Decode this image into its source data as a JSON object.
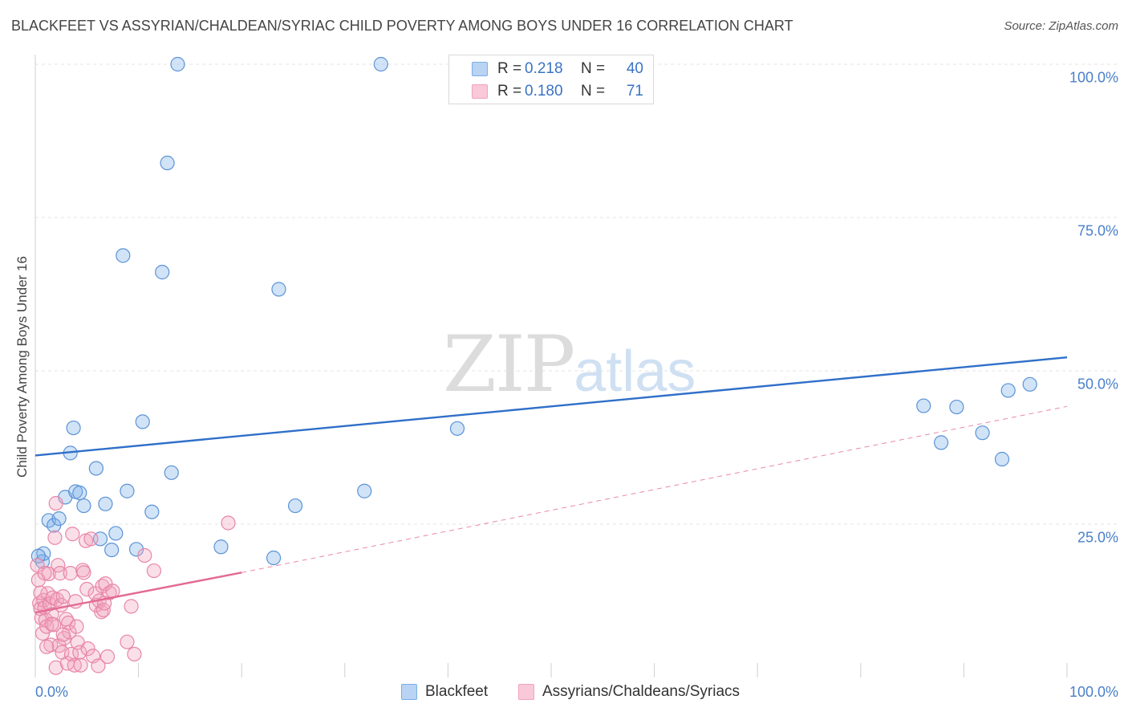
{
  "title": "BLACKFEET VS ASSYRIAN/CHALDEAN/SYRIAC CHILD POVERTY AMONG BOYS UNDER 16 CORRELATION CHART",
  "source": "Source: ZipAtlas.com",
  "watermark": {
    "zip": "ZIP",
    "atlas": "atlas"
  },
  "legend_top": [
    {
      "r_label": "R =",
      "r_value": "0.218",
      "n_label": "N =",
      "n_value": "40",
      "color": "#7aaee8"
    },
    {
      "r_label": "R =",
      "r_value": "0.180",
      "n_label": "N =",
      "n_value": "71",
      "color": "#f2a2bd"
    }
  ],
  "chart_data": {
    "type": "scatter",
    "title": "BLACKFEET VS ASSYRIAN/CHALDEAN/SYRIAC CHILD POVERTY AMONG BOYS UNDER 16 CORRELATION CHART",
    "xlabel": "",
    "ylabel": "Child Poverty Among Boys Under 16",
    "xlim": [
      0,
      100
    ],
    "ylim": [
      0,
      100
    ],
    "x_tick_labels": [
      "0.0%",
      "100.0%"
    ],
    "y_ticks": [
      {
        "value": 100,
        "label": "100.0%"
      },
      {
        "value": 75,
        "label": "75.0%"
      },
      {
        "value": 50,
        "label": "50.0%"
      },
      {
        "value": 25,
        "label": "25.0%"
      }
    ],
    "grid": true,
    "legend_position": "bottom",
    "series": [
      {
        "name": "Blackfeet",
        "color": "#7aaee8",
        "stroke": "#5b93d6",
        "line_color": "#2f6fc9",
        "trend": {
          "x": [
            0,
            100
          ],
          "y": [
            36.2,
            52.2
          ],
          "dash_after": null
        },
        "points": [
          [
            0.7,
            18.9
          ],
          [
            0.8,
            20.2
          ],
          [
            1.3,
            25.6
          ],
          [
            1.8,
            24.8
          ],
          [
            2.3,
            25.9
          ],
          [
            2.9,
            29.4
          ],
          [
            3.4,
            36.6
          ],
          [
            3.7,
            40.7
          ],
          [
            3.9,
            30.3
          ],
          [
            4.3,
            30.1
          ],
          [
            4.7,
            28.0
          ],
          [
            5.9,
            34.1
          ],
          [
            6.3,
            22.6
          ],
          [
            6.8,
            28.3
          ],
          [
            7.4,
            20.8
          ],
          [
            7.8,
            23.5
          ],
          [
            8.5,
            68.8
          ],
          [
            8.9,
            30.4
          ],
          [
            9.8,
            20.9
          ],
          [
            10.4,
            41.7
          ],
          [
            11.3,
            27.0
          ],
          [
            12.3,
            66.1
          ],
          [
            12.8,
            83.9
          ],
          [
            13.2,
            33.4
          ],
          [
            13.8,
            100.0
          ],
          [
            18.0,
            21.3
          ],
          [
            23.1,
            19.5
          ],
          [
            23.6,
            63.3
          ],
          [
            25.2,
            28.0
          ],
          [
            31.9,
            30.4
          ],
          [
            33.5,
            100.0
          ],
          [
            40.9,
            40.6
          ],
          [
            86.1,
            44.3
          ],
          [
            87.8,
            38.3
          ],
          [
            89.3,
            44.1
          ],
          [
            91.8,
            39.9
          ],
          [
            93.7,
            35.6
          ],
          [
            94.3,
            46.8
          ],
          [
            96.4,
            47.8
          ],
          [
            0.3,
            19.8
          ]
        ]
      },
      {
        "name": "Assyrians/Chaldeans/Syriacs",
        "color": "#f2a2bd",
        "stroke": "#e886a8",
        "line_color": "#e36a93",
        "trend": {
          "x": [
            0,
            20,
            100
          ],
          "y": [
            10.6,
            17.1,
            44.2
          ],
          "dash_after": 20
        },
        "points": [
          [
            0.2,
            18.3
          ],
          [
            0.3,
            15.9
          ],
          [
            0.4,
            12.1
          ],
          [
            0.5,
            11.2
          ],
          [
            0.6,
            9.7
          ],
          [
            0.7,
            7.2
          ],
          [
            0.8,
            12.6
          ],
          [
            0.9,
            11.4
          ],
          [
            1.0,
            9.4
          ],
          [
            1.1,
            8.3
          ],
          [
            1.2,
            13.7
          ],
          [
            1.3,
            16.9
          ],
          [
            1.4,
            12.0
          ],
          [
            1.5,
            5.3
          ],
          [
            1.6,
            10.3
          ],
          [
            1.7,
            13.0
          ],
          [
            1.8,
            8.6
          ],
          [
            1.9,
            22.8
          ],
          [
            2.0,
            28.4
          ],
          [
            2.0,
            1.6
          ],
          [
            2.1,
            12.7
          ],
          [
            2.2,
            18.3
          ],
          [
            2.3,
            5.2
          ],
          [
            2.4,
            17.0
          ],
          [
            2.5,
            11.8
          ],
          [
            2.6,
            4.1
          ],
          [
            2.7,
            13.2
          ],
          [
            2.8,
            6.4
          ],
          [
            3.0,
            9.5
          ],
          [
            3.1,
            2.3
          ],
          [
            3.2,
            8.9
          ],
          [
            3.3,
            7.4
          ],
          [
            3.4,
            17.0
          ],
          [
            3.5,
            3.8
          ],
          [
            3.6,
            23.4
          ],
          [
            3.8,
            2.0
          ],
          [
            4.0,
            8.3
          ],
          [
            4.1,
            5.7
          ],
          [
            4.3,
            4.1
          ],
          [
            4.4,
            2.0
          ],
          [
            4.6,
            17.5
          ],
          [
            4.7,
            17.1
          ],
          [
            4.9,
            22.3
          ],
          [
            5.0,
            14.4
          ],
          [
            5.1,
            4.7
          ],
          [
            5.4,
            22.6
          ],
          [
            5.6,
            3.5
          ],
          [
            5.8,
            13.7
          ],
          [
            5.9,
            11.8
          ],
          [
            6.1,
            1.9
          ],
          [
            6.2,
            12.5
          ],
          [
            6.4,
            10.7
          ],
          [
            6.5,
            14.9
          ],
          [
            6.6,
            11.0
          ],
          [
            6.8,
            15.3
          ],
          [
            7.0,
            3.4
          ],
          [
            7.2,
            13.8
          ],
          [
            7.5,
            14.1
          ],
          [
            8.9,
            5.8
          ],
          [
            9.3,
            11.6
          ],
          [
            9.6,
            3.8
          ],
          [
            10.6,
            19.9
          ],
          [
            11.5,
            17.4
          ],
          [
            18.7,
            25.2
          ],
          [
            0.9,
            17.0
          ],
          [
            1.6,
            8.7
          ],
          [
            2.7,
            7.0
          ],
          [
            3.9,
            12.4
          ],
          [
            1.1,
            5.0
          ],
          [
            0.5,
            13.8
          ],
          [
            6.7,
            12.1
          ]
        ]
      }
    ]
  }
}
